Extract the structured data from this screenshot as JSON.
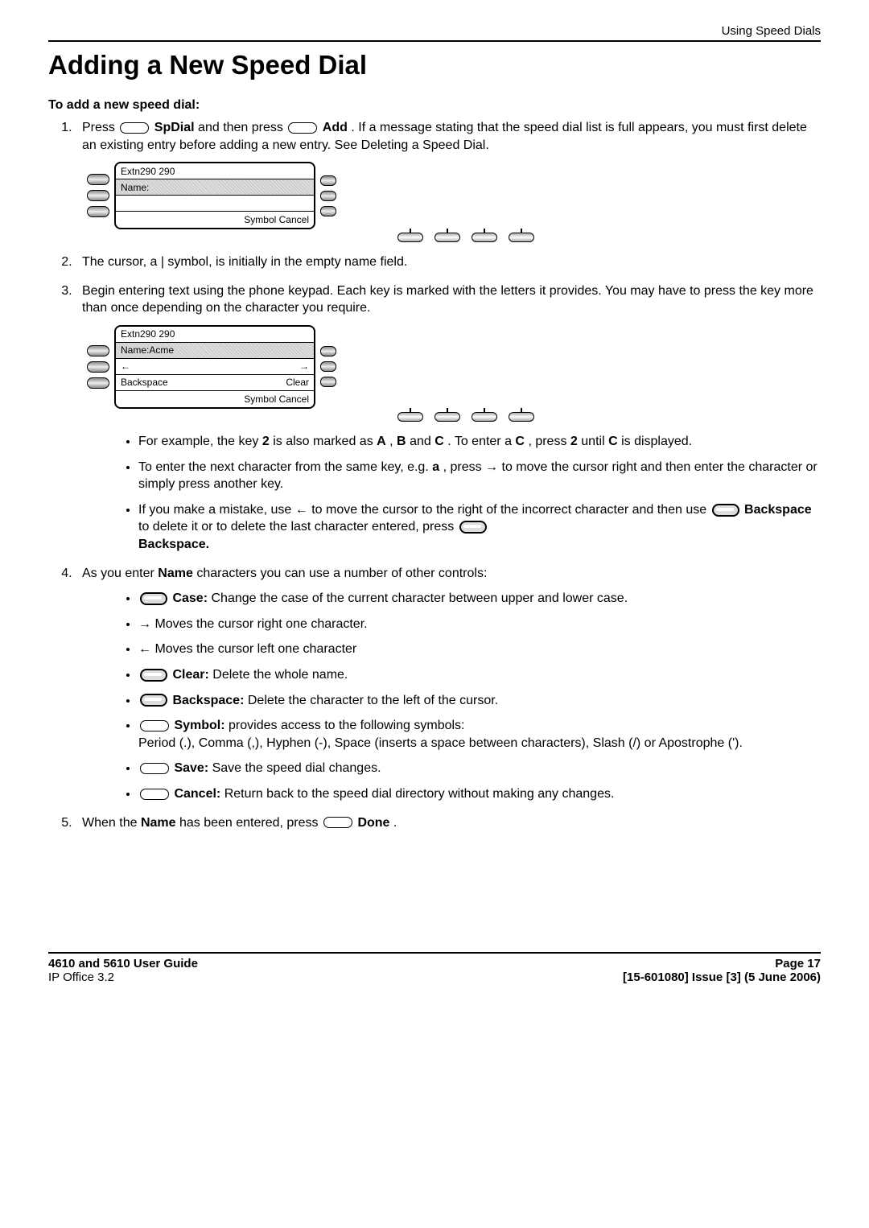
{
  "top_right": "Using Speed Dials",
  "heading": "Adding a New Speed Dial",
  "subheading": "To add a new speed dial:",
  "step1": {
    "pre": "Press ",
    "b1": "SpDial",
    "mid": " and then press ",
    "b2": "Add",
    "post": ". If a message stating that the speed dial list is full appears, you must first delete an existing entry before adding a new entry. See Deleting a Speed Dial."
  },
  "lcd1": {
    "r1": "Extn290 290",
    "r2_left": "Name:",
    "r2_right": "",
    "r4_right": "Symbol  Cancel"
  },
  "step2": "The cursor, a | symbol, is initially in the empty name field.",
  "step3": "Begin entering text using the phone keypad. Each key is marked with the letters it provides. You may have to press the key more than once depending on the character you require.",
  "lcd2": {
    "r1": "Extn290 290",
    "r2": "Name:Acme",
    "r3_arrow_left": "←",
    "r3_arrow_right": "→",
    "r4_left": "Backspace",
    "r4_right": "Clear",
    "r5_right": "Symbol  Cancel"
  },
  "sub3": {
    "item1_a": "For example, the key ",
    "item1_b2": "2",
    "item1_c": " is also marked as ",
    "item1_bA": "A",
    "item1_d": ", ",
    "item1_bB": "B",
    "item1_e": " and ",
    "item1_bC": "C",
    "item1_f": ". To enter a ",
    "item1_bC2": "C",
    "item1_g": ", press ",
    "item1_b22": "2",
    "item1_h": " until ",
    "item1_bC3": "C",
    "item1_i": " is displayed.",
    "item2_a": "To enter the next character from the same key, e.g. ",
    "item2_b": "a",
    "item2_c": ", press ",
    "item2_arrow": "→",
    "item2_d": " to move the cursor right and then enter the character or simply press another key.",
    "item3_a": "If you make a mistake, use ",
    "item3_arrow": "←",
    "item3_b": " to move the cursor to the right of the incorrect character and then use ",
    "item3_c": "Backspace",
    "item3_d": " to delete it or to delete the last character entered, press ",
    "item3_e": "Backspace."
  },
  "step4": {
    "pre": "As you enter ",
    "b": "Name",
    "post": " characters you can use a number of other controls:"
  },
  "sub4": {
    "case_b": "Case:",
    "case_t": " Change the case of the current character between upper and lower case.",
    "right_arrow": "→",
    "right_t": " Moves the cursor right one character.",
    "left_arrow": "←",
    "left_t": " Moves the cursor left one character",
    "clear_b": "Clear:",
    "clear_t": " Delete the whole name.",
    "back_b": "Backspace:",
    "back_t": " Delete the character to the left of the cursor.",
    "sym_b": "Symbol:",
    "sym_t1": " provides access to the following symbols:",
    "sym_t2": "Period (.), Comma (,), Hyphen (-), Space (inserts a space between characters), Slash (/) or Apostrophe (').",
    "save_b": "Save:",
    "save_t": " Save the speed dial changes.",
    "cancel_b": "Cancel:",
    "cancel_t": " Return back to the speed dial directory without making any changes."
  },
  "step5": {
    "pre": "When the ",
    "b": "Name",
    "mid": " has been entered, press ",
    "b2": "Done",
    "post": "."
  },
  "footer": {
    "l1": "4610 and 5610 User Guide",
    "r1": "Page 17",
    "l2": "IP Office 3.2",
    "r2": "[15-601080] Issue [3] (5 June 2006)"
  }
}
